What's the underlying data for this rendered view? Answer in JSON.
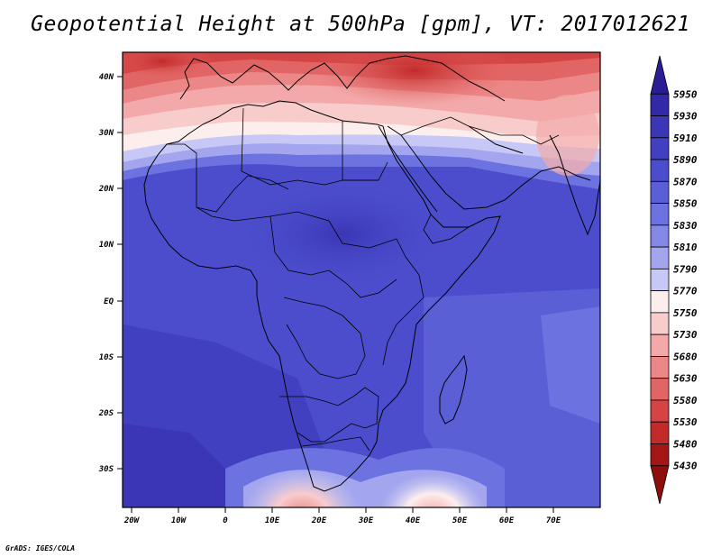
{
  "title": "Geopotential Height at 500hPa [gpm], VT: 2017012621",
  "credit": "GrADS: IGES/COLA",
  "lat_ticks": [
    "40N",
    "30N",
    "20N",
    "10N",
    "EQ",
    "10S",
    "20S",
    "30S"
  ],
  "lon_ticks": [
    "20W",
    "10W",
    "0",
    "10E",
    "20E",
    "30E",
    "40E",
    "50E",
    "60E",
    "70E"
  ],
  "colorbar": {
    "labels": [
      "5950",
      "5930",
      "5910",
      "5890",
      "5870",
      "5850",
      "5830",
      "5810",
      "5790",
      "5770",
      "5750",
      "5730",
      "5680",
      "5630",
      "5580",
      "5530",
      "5480",
      "5430"
    ],
    "colors": [
      "#2a1d95",
      "#3328a8",
      "#3a36b6",
      "#4040c0",
      "#4b4dcc",
      "#5a5fd6",
      "#6c72df",
      "#8489e6",
      "#a3a6ee",
      "#c7c8f5",
      "#fdeeee",
      "#f9cccc",
      "#f3a9a9",
      "#ec8787",
      "#e26565",
      "#d54444",
      "#c32a2a",
      "#a51616",
      "#8e0d0d"
    ]
  },
  "colors": {
    "land_outline": "#000000",
    "frame": "#000000"
  }
}
